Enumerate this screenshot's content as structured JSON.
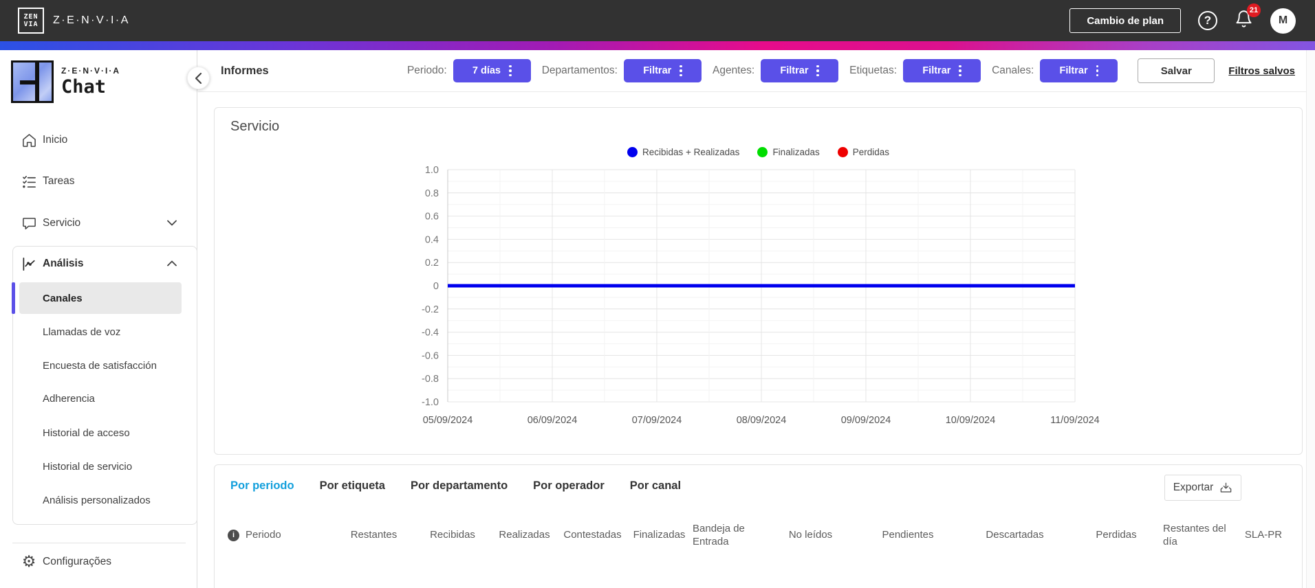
{
  "topbar": {
    "logo_line1": "ZEN",
    "logo_line2": "VIA",
    "brand": "Z·E·N·V·I·A",
    "change_plan_label": "Cambio de plan",
    "notification_count": "21",
    "avatar_initial": "M"
  },
  "sidebar": {
    "logo_brand": "Z·E·N·V·I·A",
    "logo_product": "Chat",
    "items": [
      {
        "label": "Inicio"
      },
      {
        "label": "Tareas"
      },
      {
        "label": "Servicio"
      },
      {
        "label": "Análisis"
      }
    ],
    "analysis_children": [
      "Canales",
      "Llamadas de voz",
      "Encuesta de satisfacción",
      "Adherencia",
      "Historial de acceso",
      "Historial de servicio",
      "Análisis personalizados"
    ],
    "selected_child": "Canales",
    "settings_label": "Configurações"
  },
  "header": {
    "title": "Informes",
    "filters": [
      {
        "label": "Periodo:",
        "button": "7 días"
      },
      {
        "label": "Departamentos:",
        "button": "Filtrar"
      },
      {
        "label": "Agentes:",
        "button": "Filtrar"
      },
      {
        "label": "Etiquetas:",
        "button": "Filtrar"
      },
      {
        "label": "Canales:",
        "button": "Filtrar"
      }
    ],
    "save_button": "Salvar",
    "saved_filters_link": "Filtros salvos"
  },
  "chart_card": {
    "title": "Servicio"
  },
  "chart_data": {
    "type": "line",
    "title": "Servicio",
    "x": [
      "05/09/2024",
      "06/09/2024",
      "07/09/2024",
      "08/09/2024",
      "09/09/2024",
      "10/09/2024",
      "11/09/2024"
    ],
    "series": [
      {
        "name": "Recibidas + Realizadas",
        "color": "#0000ee",
        "values": [
          0,
          0,
          0,
          0,
          0,
          0,
          0
        ]
      },
      {
        "name": "Finalizadas",
        "color": "#00dd00",
        "values": [
          0,
          0,
          0,
          0,
          0,
          0,
          0
        ]
      },
      {
        "name": "Perdidas",
        "color": "#ee0000",
        "values": [
          0,
          0,
          0,
          0,
          0,
          0,
          0
        ]
      }
    ],
    "ylim": [
      -1.0,
      1.0
    ],
    "ytick_labels": [
      "1.0",
      "0.8",
      "0.6",
      "0.4",
      "0.2",
      "0",
      "-0.2",
      "-0.4",
      "-0.6",
      "-0.8",
      "-1.0"
    ],
    "grid": true,
    "legend_position": "top"
  },
  "table_section": {
    "tabs": [
      "Por periodo",
      "Por etiqueta",
      "Por departamento",
      "Por operador",
      "Por canal"
    ],
    "active_tab": "Por periodo",
    "export_label": "Exportar",
    "columns": [
      "Periodo",
      "Restantes",
      "Recibidas",
      "Realizadas",
      "Contestadas",
      "Finalizadas",
      "Bandeja de Entrada",
      "No leídos",
      "Pendientes",
      "Descartadas",
      "Perdidas",
      "Restantes del día",
      "SLA-PR"
    ]
  },
  "colors": {
    "accent_button": "#5a50e8",
    "active_tab": "#129fdc",
    "badge": "#e01b22",
    "topbar_bg": "#323232",
    "selected_item_bg": "#e9e9e9",
    "gradient": [
      "#2b51e5",
      "#a21bb4",
      "#e60c8b",
      "#8355e2"
    ]
  }
}
